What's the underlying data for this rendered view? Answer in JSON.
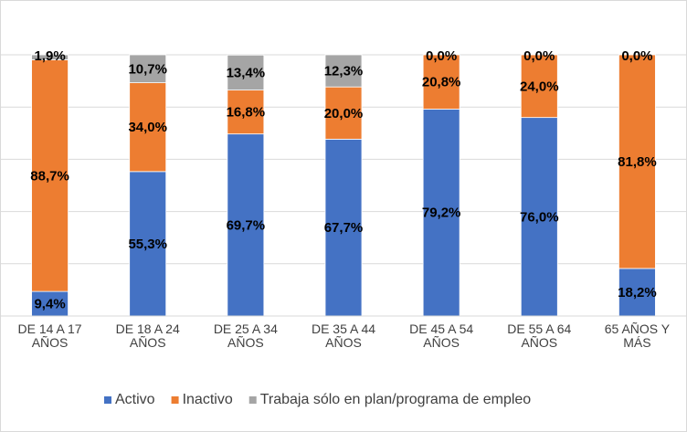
{
  "chart_data": {
    "type": "bar",
    "stacked": true,
    "title": "",
    "xlabel": "",
    "ylabel": "",
    "ylim": [
      0,
      100
    ],
    "grid": true,
    "legend_position": "bottom",
    "categories": [
      [
        "DE 14 A 17",
        "AÑOS"
      ],
      [
        "DE 18 A 24",
        "AÑOS"
      ],
      [
        "DE 25 A 34",
        "AÑOS"
      ],
      [
        "DE 35 A 44",
        "AÑOS"
      ],
      [
        "DE 45 A 54",
        "AÑOS"
      ],
      [
        "DE 55 A 64",
        "AÑOS"
      ],
      [
        "65 AÑOS Y",
        "MÁS"
      ]
    ],
    "series": [
      {
        "name": "Activo",
        "color": "#4472c4",
        "values": [
          9.4,
          55.3,
          69.7,
          67.7,
          79.2,
          76.0,
          18.2
        ],
        "labels": [
          "9,4%",
          "55,3%",
          "69,7%",
          "67,7%",
          "79,2%",
          "76,0%",
          "18,2%"
        ]
      },
      {
        "name": "Inactivo",
        "color": "#ed7d31",
        "values": [
          88.7,
          34.0,
          16.8,
          20.0,
          20.8,
          24.0,
          81.8
        ],
        "labels": [
          "88,7%",
          "34,0%",
          "16,8%",
          "20,0%",
          "20,8%",
          "24,0%",
          "81,8%"
        ]
      },
      {
        "name": "Trabaja sólo en plan/programa de empleo",
        "color": "#a5a5a5",
        "values": [
          1.9,
          10.7,
          13.4,
          12.3,
          0.0,
          0.0,
          0.0
        ],
        "labels": [
          "1,9%",
          "10,7%",
          "13,4%",
          "12,3%",
          "0,0%",
          "0,0%",
          "0,0%"
        ]
      }
    ]
  }
}
